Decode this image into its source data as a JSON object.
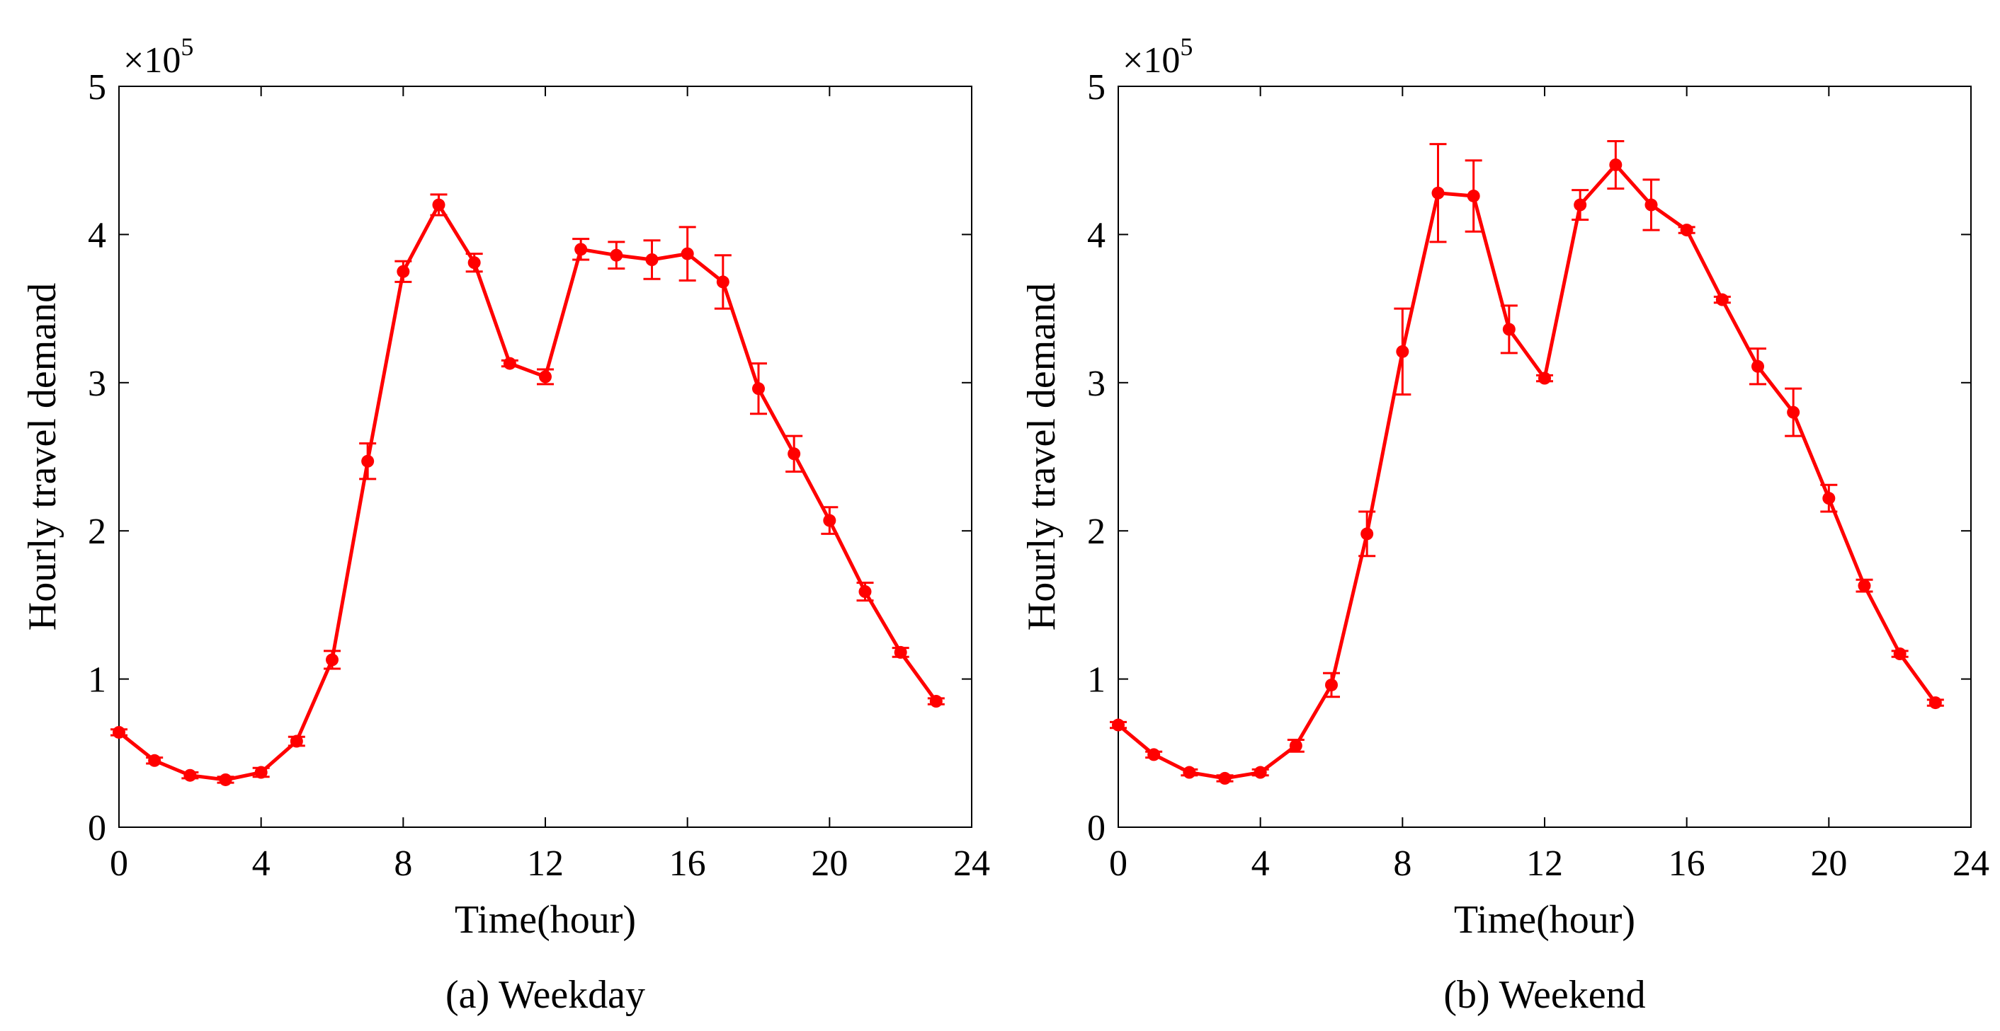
{
  "chart_data": [
    {
      "type": "line",
      "caption": "(a) Weekday",
      "xlabel": "Time(hour)",
      "ylabel": "Hourly travel demand",
      "y_multiplier": "×10",
      "y_multiplier_exponent": "5",
      "xlim": [
        0,
        24
      ],
      "ylim": [
        0,
        5
      ],
      "xticks": [
        "0",
        "4",
        "8",
        "12",
        "16",
        "20",
        "24"
      ],
      "yticks": [
        "0",
        "1",
        "2",
        "3",
        "4",
        "5"
      ],
      "grid": false,
      "color": "#ff0000",
      "series": [
        {
          "name": "Weekday",
          "x": [
            0,
            1,
            2,
            3,
            4,
            5,
            6,
            7,
            8,
            9,
            10,
            11,
            12,
            13,
            14,
            15,
            16,
            17,
            18,
            19,
            20,
            21,
            22,
            23
          ],
          "values": [
            0.64,
            0.45,
            0.35,
            0.32,
            0.37,
            0.58,
            1.13,
            2.47,
            3.75,
            4.2,
            3.81,
            3.13,
            3.04,
            3.9,
            3.86,
            3.83,
            3.87,
            3.68,
            2.96,
            2.52,
            2.07,
            1.59,
            1.18,
            0.85
          ],
          "errors": [
            0.02,
            0.02,
            0.02,
            0.02,
            0.03,
            0.03,
            0.06,
            0.12,
            0.07,
            0.07,
            0.06,
            0.02,
            0.05,
            0.07,
            0.09,
            0.13,
            0.18,
            0.18,
            0.17,
            0.12,
            0.09,
            0.06,
            0.03,
            0.02
          ]
        }
      ]
    },
    {
      "type": "line",
      "caption": "(b) Weekend",
      "xlabel": "Time(hour)",
      "ylabel": "Hourly travel demand",
      "y_multiplier": "×10",
      "y_multiplier_exponent": "5",
      "xlim": [
        0,
        24
      ],
      "ylim": [
        0,
        5
      ],
      "xticks": [
        "0",
        "4",
        "8",
        "12",
        "16",
        "20",
        "24"
      ],
      "yticks": [
        "0",
        "1",
        "2",
        "3",
        "4",
        "5"
      ],
      "grid": false,
      "color": "#ff0000",
      "series": [
        {
          "name": "Weekend",
          "x": [
            0,
            1,
            2,
            3,
            4,
            5,
            6,
            7,
            8,
            9,
            10,
            11,
            12,
            13,
            14,
            15,
            16,
            17,
            18,
            19,
            20,
            21,
            22,
            23
          ],
          "values": [
            0.69,
            0.49,
            0.37,
            0.33,
            0.37,
            0.55,
            0.96,
            1.98,
            3.21,
            4.28,
            4.26,
            3.36,
            3.03,
            4.2,
            4.47,
            4.2,
            4.03,
            3.56,
            3.11,
            2.8,
            2.22,
            1.63,
            1.17,
            0.84
          ],
          "errors": [
            0.02,
            0.02,
            0.02,
            0.02,
            0.02,
            0.04,
            0.08,
            0.15,
            0.29,
            0.33,
            0.24,
            0.16,
            0.02,
            0.1,
            0.16,
            0.17,
            0.02,
            0.02,
            0.12,
            0.16,
            0.09,
            0.04,
            0.02,
            0.02
          ]
        }
      ]
    }
  ]
}
